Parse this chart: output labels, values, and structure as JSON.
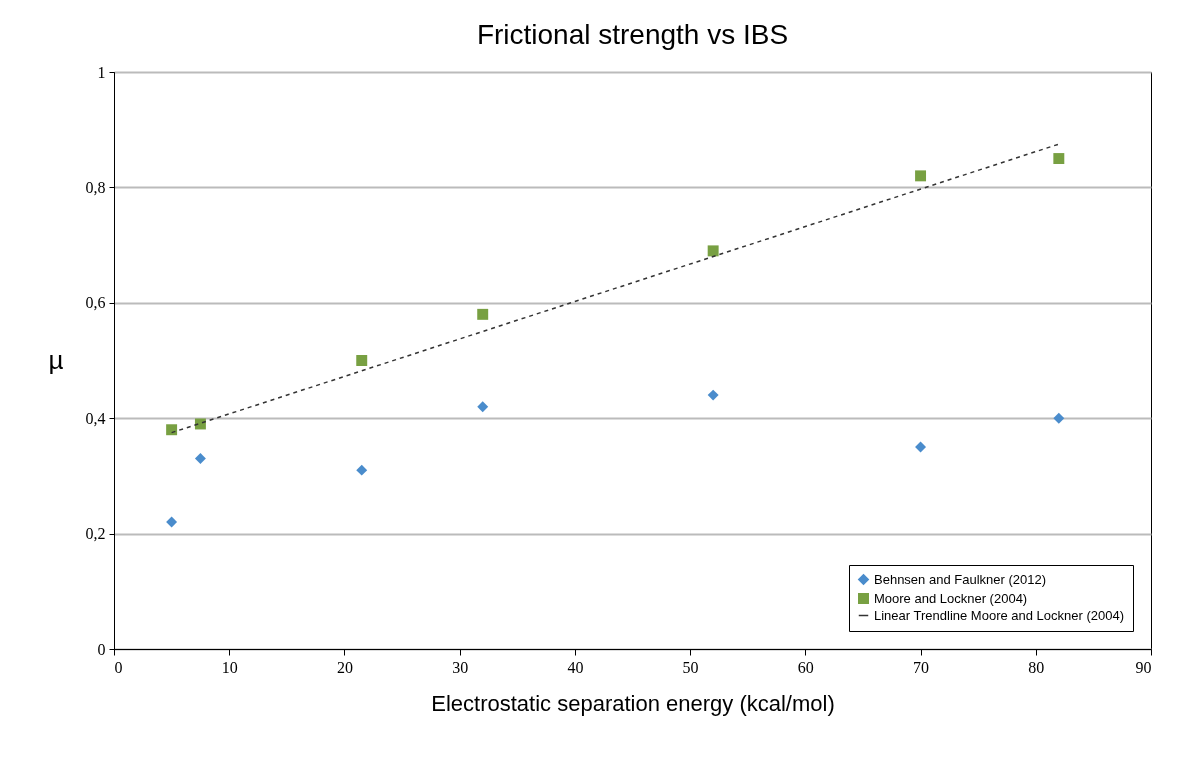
{
  "chart_data": {
    "type": "scatter",
    "title": "Frictional strength vs IBS",
    "xlabel": "Electrostatic separation energy (kcal/mol)",
    "ylabel": "µ",
    "xlim": [
      0,
      90
    ],
    "xticks": [
      0,
      10,
      20,
      30,
      40,
      50,
      60,
      70,
      80,
      90
    ],
    "ylim": [
      0,
      1
    ],
    "yticks": [
      0,
      {
        "value": 0.2,
        "label": "0,2"
      },
      {
        "value": 0.4,
        "label": "0,4"
      },
      {
        "value": 0.6,
        "label": "0,6"
      },
      {
        "value": 0.8,
        "label": "0,8"
      },
      1
    ],
    "grid": "y",
    "legend": "bottom right",
    "series": [
      {
        "name": "Behnsen and Faulkner (2012)",
        "marker": "diamond",
        "color": "#4a8ccc",
        "x": [
          5,
          7.5,
          21.5,
          32,
          52,
          70,
          82
        ],
        "values": [
          0.22,
          0.33,
          0.31,
          0.42,
          0.44,
          0.35,
          0.4
        ]
      },
      {
        "name": "Moore and Lockner (2004)",
        "marker": "square",
        "color": "#78a042",
        "x": [
          5,
          7.5,
          21.5,
          32,
          52,
          70,
          82
        ],
        "values": [
          0.38,
          0.39,
          0.5,
          0.58,
          0.69,
          0.82,
          0.85
        ]
      },
      {
        "name": "Linear Trendline Moore and Lockner (2004)",
        "type": "line",
        "line_style": "dashed",
        "color": "#333333",
        "x": [
          5,
          82
        ],
        "values": [
          0.375,
          0.875
        ]
      }
    ]
  }
}
